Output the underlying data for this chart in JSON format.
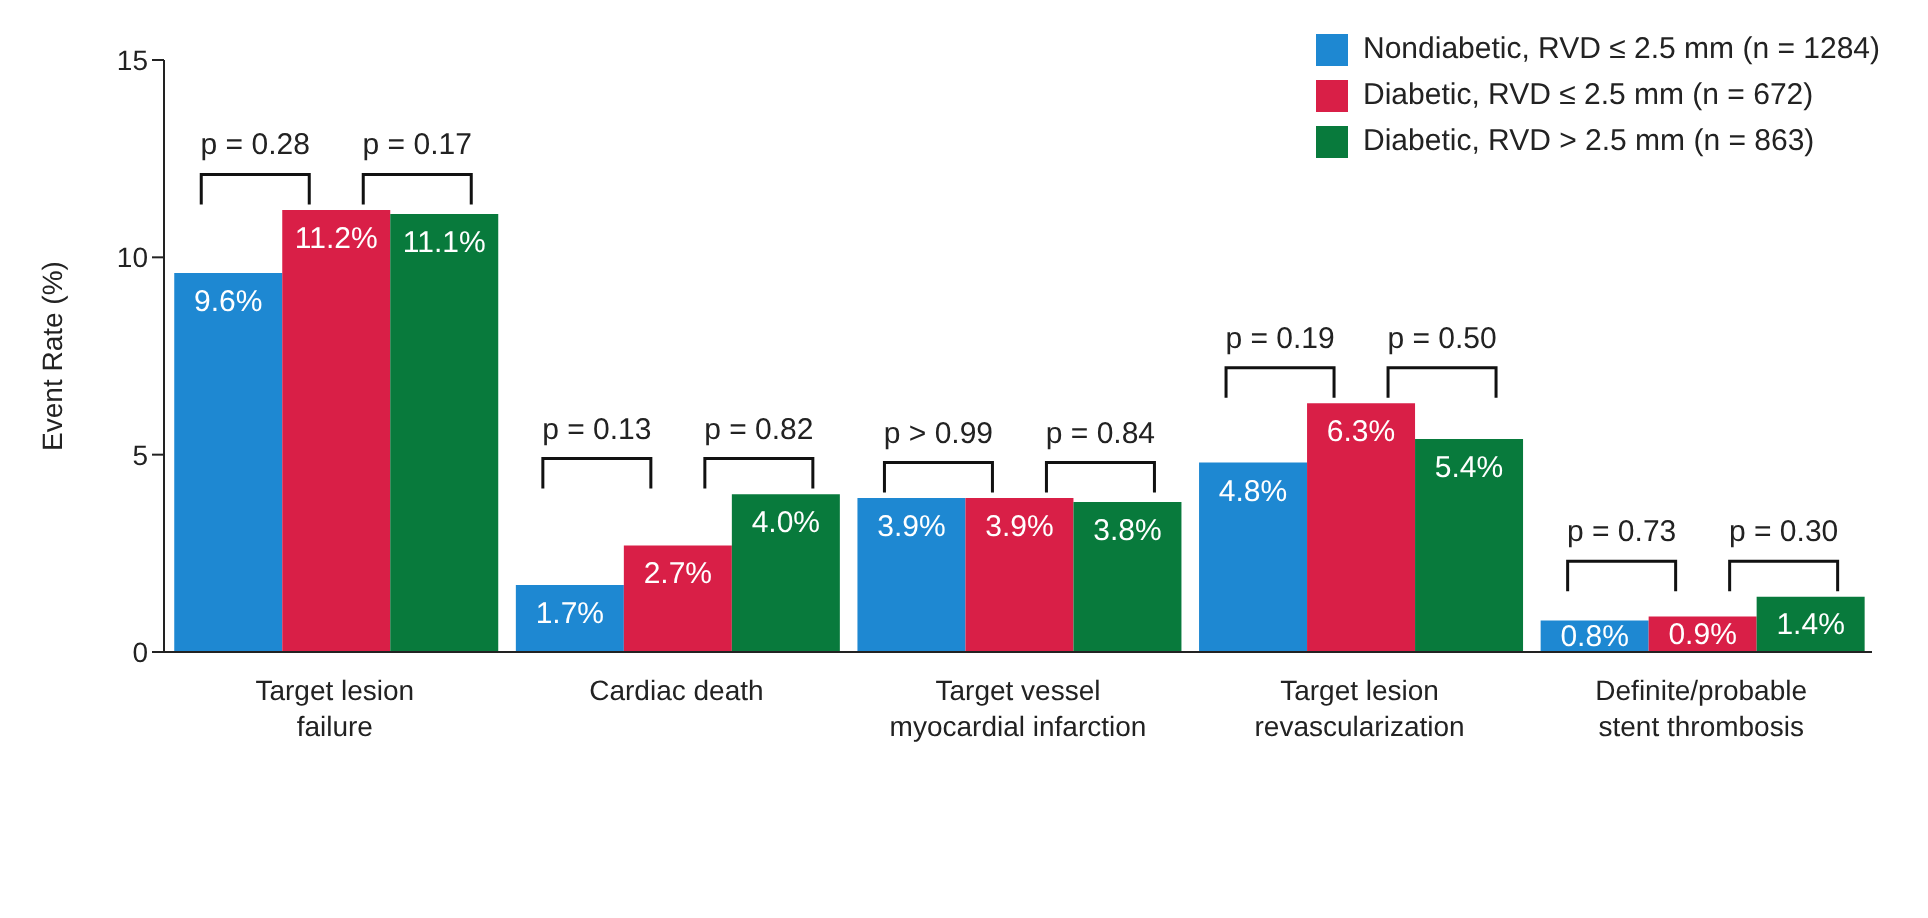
{
  "chart_data": {
    "type": "bar",
    "ylabel": "Event Rate  (%)",
    "categories": [
      "Target lesion failure",
      "Cardiac death",
      "Target vessel myocardial infarction",
      "Target lesion revascularization",
      "Definite/probable stent thrombosis"
    ],
    "series": [
      {
        "name": "Nondiabetic, RVD ≤ 2.5 mm (n = 1284)",
        "color": "#1e88d2",
        "values": [
          9.6,
          1.7,
          3.9,
          4.8,
          0.8
        ],
        "value_labels": [
          "9.6%",
          "1.7%",
          "3.9%",
          "4.8%",
          "0.8%"
        ]
      },
      {
        "name": "Diabetic, RVD ≤ 2.5 mm (n = 672)",
        "color": "#d91f47",
        "values": [
          11.2,
          2.7,
          3.9,
          6.3,
          0.9
        ],
        "value_labels": [
          "11.2%",
          "2.7%",
          "3.9%",
          "6.3%",
          "0.9%"
        ]
      },
      {
        "name": "Diabetic, RVD > 2.5 mm (n = 863)",
        "color": "#087a3c",
        "values": [
          11.1,
          4.0,
          3.8,
          5.4,
          1.4
        ],
        "value_labels": [
          "11.1%",
          "4.0%",
          "3.8%",
          "5.4%",
          "1.4%"
        ]
      }
    ],
    "ylim": [
      0,
      15
    ],
    "yticks": [
      0,
      5,
      10,
      15
    ],
    "grid": false,
    "legend": "top right",
    "annotations": [
      "p = 0.28",
      "p = 0.17",
      "p = 0.13",
      "p = 0.82",
      "p > 0.99",
      "p = 0.84",
      "p = 0.19",
      "p = 0.50",
      "p = 0.73",
      "p = 0.30"
    ]
  }
}
